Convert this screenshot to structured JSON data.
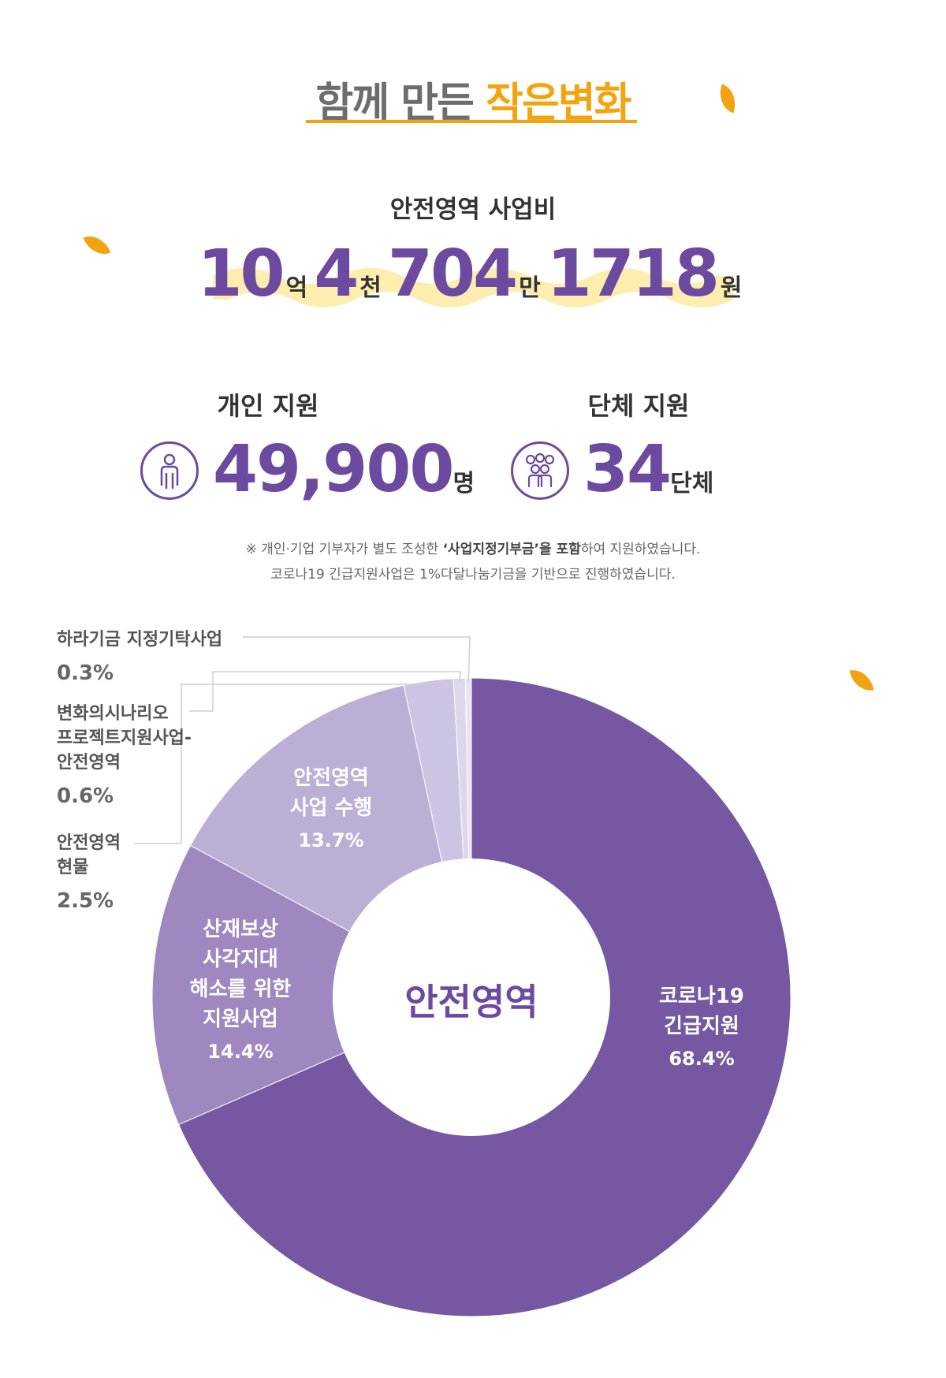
{
  "header": {
    "title_part1": "함께 만든",
    "title_part2": "작은변화"
  },
  "budget": {
    "label": "안전영역 사업비",
    "n1": "10",
    "u1": "억",
    "n2": "4",
    "u2": "천",
    "n3": "704",
    "u3": "만",
    "n4": "1718",
    "u4": "원"
  },
  "individual": {
    "label": "개인 지원",
    "value": "49,900",
    "unit": "명",
    "icon": "person-icon"
  },
  "group": {
    "label": "단체 지원",
    "value": "34",
    "unit": "단체",
    "icon": "group-icon"
  },
  "notes": {
    "line1_pre": "※ 개인·기업 기부자가 별도 조성한 ",
    "line1_bold": "‘사업지정기부금’을 포함",
    "line1_post": "하여 지원하였습니다.",
    "line2": "코로나19 긴급지원사업은 1%다달나눔기금을 기반으로 진행하였습니다."
  },
  "colors": {
    "accent": "#f3a30f",
    "purple": "#6b4aa0",
    "slice1": "#7658a2",
    "slice2": "#9f88c0",
    "slice3": "#bcafd6",
    "slice4": "#cdc3e3",
    "slice5": "#ddd6ec",
    "slice6": "#e9e4f2"
  },
  "chart_data": {
    "type": "pie",
    "center_label": "안전영역",
    "slices": [
      {
        "name": "코로나19 긴급지원",
        "label_lines": [
          "코로나19",
          "긴급지원"
        ],
        "value": 68.4,
        "pct": "68.4%"
      },
      {
        "name": "산재보상 사각지대 해소를 위한 지원사업",
        "label_lines": [
          "산재보상",
          "사각지대",
          "해소를 위한",
          "지원사업"
        ],
        "value": 14.4,
        "pct": "14.4%"
      },
      {
        "name": "안전영역 사업 수행",
        "label_lines": [
          "안전영역",
          "사업 수행"
        ],
        "value": 13.7,
        "pct": "13.7%"
      },
      {
        "name": "안전영역 현물",
        "label_lines": [
          "안전영역",
          "현물"
        ],
        "value": 2.5,
        "pct": "2.5%"
      },
      {
        "name": "변화의시나리오 프로젝트지원사업-안전영역",
        "label_lines": [
          "변화의시나리오",
          "프로젝트지원사업-",
          "안전영역"
        ],
        "value": 0.6,
        "pct": "0.6%"
      },
      {
        "name": "하라기금 지정기탁사업",
        "label_lines": [
          "하라기금 지정기탁사업"
        ],
        "value": 0.3,
        "pct": "0.3%"
      }
    ]
  }
}
